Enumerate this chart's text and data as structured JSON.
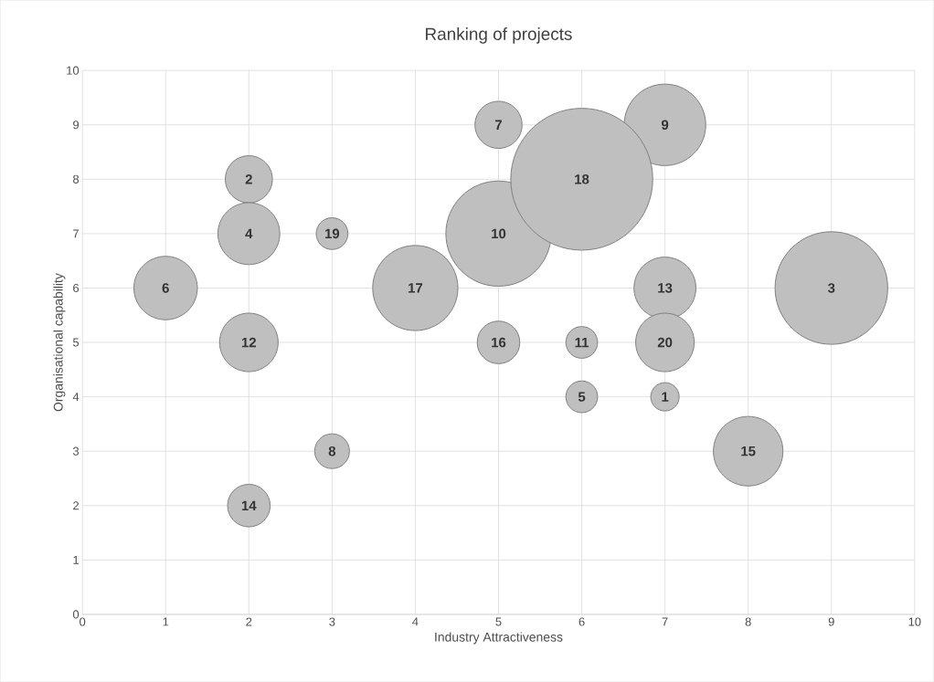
{
  "chart_data": {
    "type": "bubble",
    "title": "Ranking of projects",
    "xlabel": "Industry Attractiveness",
    "ylabel": "Organisational capability",
    "x": [
      7,
      2,
      9,
      2,
      6,
      1,
      5,
      3,
      7,
      5,
      6,
      2,
      7,
      2,
      8,
      5,
      4,
      6,
      3,
      7
    ],
    "values": [
      4,
      8,
      6,
      7,
      4,
      6,
      9,
      3,
      9,
      7,
      5,
      5,
      6,
      2,
      3,
      5,
      6,
      8,
      7,
      5
    ],
    "sizes": [
      0.04,
      0.11,
      0.63,
      0.19,
      0.05,
      0.2,
      0.11,
      0.06,
      0.33,
      0.55,
      0.05,
      0.17,
      0.19,
      0.09,
      0.24,
      0.09,
      0.36,
      1,
      0.05,
      0.17
    ],
    "color": "#bfbfbf",
    "xlim": [
      0,
      10
    ],
    "ylim": [
      0,
      10
    ],
    "xticks": [
      0,
      1,
      2,
      3,
      4,
      5,
      6,
      7,
      8,
      9,
      10
    ],
    "yticks": [
      0,
      1,
      2,
      3,
      4,
      5,
      6,
      7,
      8,
      9,
      10
    ],
    "grid": true,
    "annotations": [
      {
        "text": "1",
        "x": 7,
        "y": 4
      },
      {
        "text": "2",
        "x": 2,
        "y": 8
      },
      {
        "text": "3",
        "x": 9,
        "y": 6
      },
      {
        "text": "4",
        "x": 2,
        "y": 7
      },
      {
        "text": "5",
        "x": 6,
        "y": 4
      },
      {
        "text": "6",
        "x": 1,
        "y": 6
      },
      {
        "text": "7",
        "x": 5,
        "y": 9
      },
      {
        "text": "8",
        "x": 3,
        "y": 3
      },
      {
        "text": "9",
        "x": 7,
        "y": 9
      },
      {
        "text": "10",
        "x": 5,
        "y": 7
      },
      {
        "text": "11",
        "x": 6,
        "y": 5
      },
      {
        "text": "12",
        "x": 2,
        "y": 5
      },
      {
        "text": "13",
        "x": 7,
        "y": 6
      },
      {
        "text": "14",
        "x": 2,
        "y": 2
      },
      {
        "text": "15",
        "x": 8,
        "y": 3
      },
      {
        "text": "16",
        "x": 5,
        "y": 5
      },
      {
        "text": "17",
        "x": 4,
        "y": 6
      },
      {
        "text": "18",
        "x": 6,
        "y": 8
      },
      {
        "text": "19",
        "x": 3,
        "y": 7
      },
      {
        "text": "20",
        "x": 7,
        "y": 5
      }
    ]
  }
}
